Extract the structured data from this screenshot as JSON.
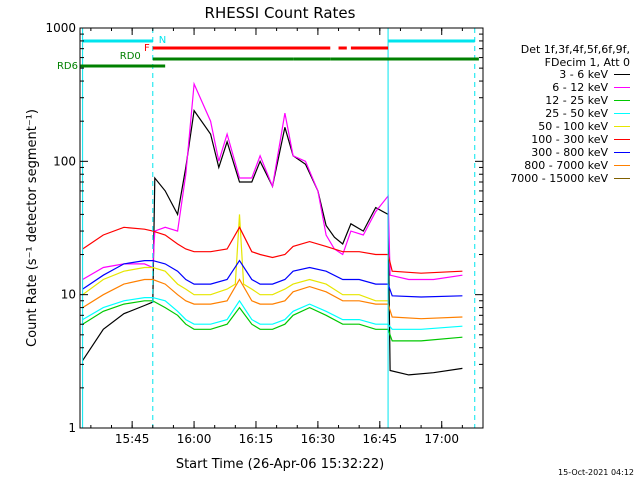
{
  "chart_data": {
    "type": "line",
    "title": "RHESSI Count Rates",
    "xlabel": "Start Time (26-Apr-06 15:32:22)",
    "ylabel": "Count Rate (s⁻¹ detector segment⁻¹)",
    "x_ticks": [
      "15:45",
      "16:00",
      "16:15",
      "16:30",
      "16:45",
      "17:00"
    ],
    "y_ticks": [
      "1",
      "10",
      "100",
      "1000"
    ],
    "y_scale": "log",
    "ylim": [
      1,
      1000
    ],
    "xlim": [
      "15:32:22",
      "17:10"
    ],
    "legend_header": [
      "Det 1f,3f,4f,5f,6f,9f,",
      "FDecim 1, Att 0"
    ],
    "series": [
      {
        "name": "3 - 6 keV",
        "color": "#000000",
        "x": [
          "15:33",
          "15:38",
          "15:43",
          "15:48",
          "15:50",
          "15:50.5",
          "15:53",
          "15:56",
          "15:58",
          "16:00",
          "16:04",
          "16:06",
          "16:08",
          "16:11",
          "16:14",
          "16:16",
          "16:19",
          "16:22",
          "16:24",
          "16:27",
          "16:30",
          "16:32",
          "16:34",
          "16:36",
          "16:38",
          "16:41",
          "16:44",
          "16:47",
          "16:47.5",
          "16:52",
          "16:58",
          "17:05"
        ],
        "values": [
          3.2,
          5.5,
          7.2,
          8.3,
          8.8,
          75,
          60,
          40,
          90,
          240,
          160,
          90,
          140,
          70,
          70,
          100,
          65,
          180,
          110,
          95,
          60,
          33,
          27,
          24,
          34,
          30,
          45,
          40,
          2.7,
          2.5,
          2.6,
          2.8
        ]
      },
      {
        "name": "6 - 12 keV",
        "color": "#ff00ff",
        "x": [
          "15:33",
          "15:38",
          "15:43",
          "15:48",
          "15:50",
          "15:50.5",
          "15:53",
          "15:56",
          "15:58",
          "16:00",
          "16:04",
          "16:06",
          "16:08",
          "16:11",
          "16:14",
          "16:16",
          "16:19",
          "16:22",
          "16:24",
          "16:27",
          "16:30",
          "16:32",
          "16:34",
          "16:36",
          "16:38",
          "16:41",
          "16:44",
          "16:47",
          "16:47.5",
          "16:52",
          "16:58",
          "17:05"
        ],
        "values": [
          13,
          16,
          17,
          17,
          16,
          30,
          32,
          30,
          80,
          380,
          200,
          100,
          160,
          75,
          75,
          110,
          65,
          230,
          110,
          100,
          60,
          28,
          22,
          20,
          30,
          28,
          42,
          55,
          14,
          13,
          13,
          14
        ]
      },
      {
        "name": "12 - 25 keV",
        "color": "#00c800",
        "x": [
          "15:33",
          "15:38",
          "15:43",
          "15:48",
          "15:50",
          "15:53",
          "15:56",
          "15:58",
          "16:00",
          "16:04",
          "16:08",
          "16:11",
          "16:14",
          "16:16",
          "16:19",
          "16:22",
          "16:24",
          "16:28",
          "16:32",
          "16:36",
          "16:40",
          "16:44",
          "16:47",
          "16:48",
          "16:55",
          "17:05"
        ],
        "values": [
          6,
          7.5,
          8.5,
          9,
          9,
          8,
          7,
          6,
          5.5,
          5.5,
          6,
          8,
          6,
          5.5,
          5.5,
          6,
          7,
          8,
          7,
          6,
          6,
          5.5,
          5.5,
          4.5,
          4.5,
          4.8
        ]
      },
      {
        "name": "25 - 50 keV",
        "color": "#00ffff",
        "x": [
          "15:33",
          "15:38",
          "15:43",
          "15:48",
          "15:50",
          "15:53",
          "15:56",
          "15:58",
          "16:00",
          "16:04",
          "16:08",
          "16:11",
          "16:14",
          "16:16",
          "16:19",
          "16:22",
          "16:24",
          "16:28",
          "16:32",
          "16:36",
          "16:40",
          "16:44",
          "16:47",
          "16:48",
          "16:55",
          "17:05"
        ],
        "values": [
          6.5,
          8,
          9,
          9.5,
          9.5,
          9,
          7.5,
          6.5,
          6,
          6,
          6.5,
          9,
          6.5,
          6,
          6,
          6.5,
          7.5,
          8.5,
          7.5,
          6.5,
          6.5,
          6,
          6,
          5.5,
          5.5,
          5.8
        ]
      },
      {
        "name": "50 - 100 keV",
        "color": "#e6e600",
        "x": [
          "15:33",
          "15:38",
          "15:43",
          "15:48",
          "15:50",
          "15:53",
          "15:56",
          "15:58",
          "16:00",
          "16:04",
          "16:08",
          "16:10",
          "16:11",
          "16:12",
          "16:14",
          "16:16",
          "16:19",
          "16:22",
          "16:24",
          "16:28",
          "16:32",
          "16:36",
          "16:40",
          "16:44",
          "16:47"
        ],
        "values": [
          10,
          13,
          15,
          16,
          16,
          15,
          12,
          11,
          10,
          10,
          11,
          12,
          40,
          12,
          11,
          10,
          10,
          11,
          12,
          13,
          12,
          10,
          10,
          9,
          9
        ]
      },
      {
        "name": "100 - 300 keV",
        "color": "#ff0000",
        "x": [
          "15:33",
          "15:38",
          "15:43",
          "15:48",
          "15:50",
          "15:53",
          "15:56",
          "15:58",
          "16:00",
          "16:04",
          "16:08",
          "16:11",
          "16:14",
          "16:16",
          "16:19",
          "16:22",
          "16:24",
          "16:28",
          "16:32",
          "16:36",
          "16:40",
          "16:44",
          "16:47",
          "16:48",
          "16:55",
          "17:05"
        ],
        "values": [
          22,
          28,
          32,
          31,
          30,
          28,
          24,
          22,
          21,
          21,
          22,
          32,
          21,
          20,
          19,
          20,
          23,
          25,
          23,
          21,
          21,
          20,
          20,
          15,
          14.5,
          15
        ]
      },
      {
        "name": "300 - 800 keV",
        "color": "#0000ff",
        "x": [
          "15:33",
          "15:38",
          "15:43",
          "15:48",
          "15:50",
          "15:53",
          "15:56",
          "15:58",
          "16:00",
          "16:04",
          "16:08",
          "16:11",
          "16:14",
          "16:16",
          "16:19",
          "16:22",
          "16:24",
          "16:28",
          "16:32",
          "16:36",
          "16:40",
          "16:44",
          "16:47",
          "16:48",
          "16:55",
          "17:05"
        ],
        "values": [
          11,
          14,
          17,
          18,
          18,
          17,
          15,
          13,
          12,
          12,
          13,
          18,
          13,
          12,
          12,
          13,
          15,
          16,
          15,
          13,
          13,
          12,
          12,
          9.8,
          9.6,
          9.8
        ]
      },
      {
        "name": "800 - 7000 keV",
        "color": "#ff8000",
        "x": [
          "15:33",
          "15:38",
          "15:43",
          "15:48",
          "15:50",
          "15:53",
          "15:56",
          "15:58",
          "16:00",
          "16:04",
          "16:08",
          "16:11",
          "16:14",
          "16:16",
          "16:19",
          "16:22",
          "16:24",
          "16:28",
          "16:32",
          "16:36",
          "16:40",
          "16:44",
          "16:47",
          "16:48",
          "16:55",
          "17:05"
        ],
        "values": [
          8,
          10,
          12,
          13,
          13,
          12,
          10,
          9,
          8.5,
          8.5,
          9,
          13,
          9,
          8.5,
          8.5,
          9,
          10.5,
          11.5,
          10.5,
          9,
          9,
          8.5,
          8.5,
          6.8,
          6.6,
          6.8
        ]
      },
      {
        "name": "7000 - 15000 keV",
        "color": "#806000",
        "x": [],
        "values": []
      }
    ],
    "annotations": {
      "attenuator": {
        "label": "N",
        "color": "#00e5ee",
        "segments": [
          [
            "15:33",
            "15:50"
          ],
          [
            "16:47",
            "17:08"
          ]
        ]
      },
      "flare_flag": {
        "label": "F",
        "color": "#ff0000",
        "segments": [
          [
            "15:50",
            "16:33"
          ],
          [
            "16:35",
            "16:37"
          ],
          [
            "16:38",
            "16:47"
          ]
        ]
      },
      "decimation_rd0": {
        "label": "RD0",
        "color": "#008000",
        "segments": [
          [
            "15:50",
            "16:24"
          ],
          [
            "16:24",
            "16:33"
          ],
          [
            "16:33",
            "17:09"
          ]
        ]
      },
      "decimation_rd6": {
        "label": "RD6",
        "color": "#008000",
        "segments": [
          [
            "15:32.5",
            "15:53"
          ]
        ]
      },
      "vertical_lines": [
        {
          "x": "15:33",
          "color": "#00e5ee",
          "style": "solid"
        },
        {
          "x": "15:50",
          "color": "#00e5ee",
          "style": "dashed"
        },
        {
          "x": "16:47",
          "color": "#00e5ee",
          "style": "solid"
        },
        {
          "x": "17:08",
          "color": "#00e5ee",
          "style": "dashed"
        }
      ]
    },
    "footer": "15-Oct-2021 04:12"
  }
}
